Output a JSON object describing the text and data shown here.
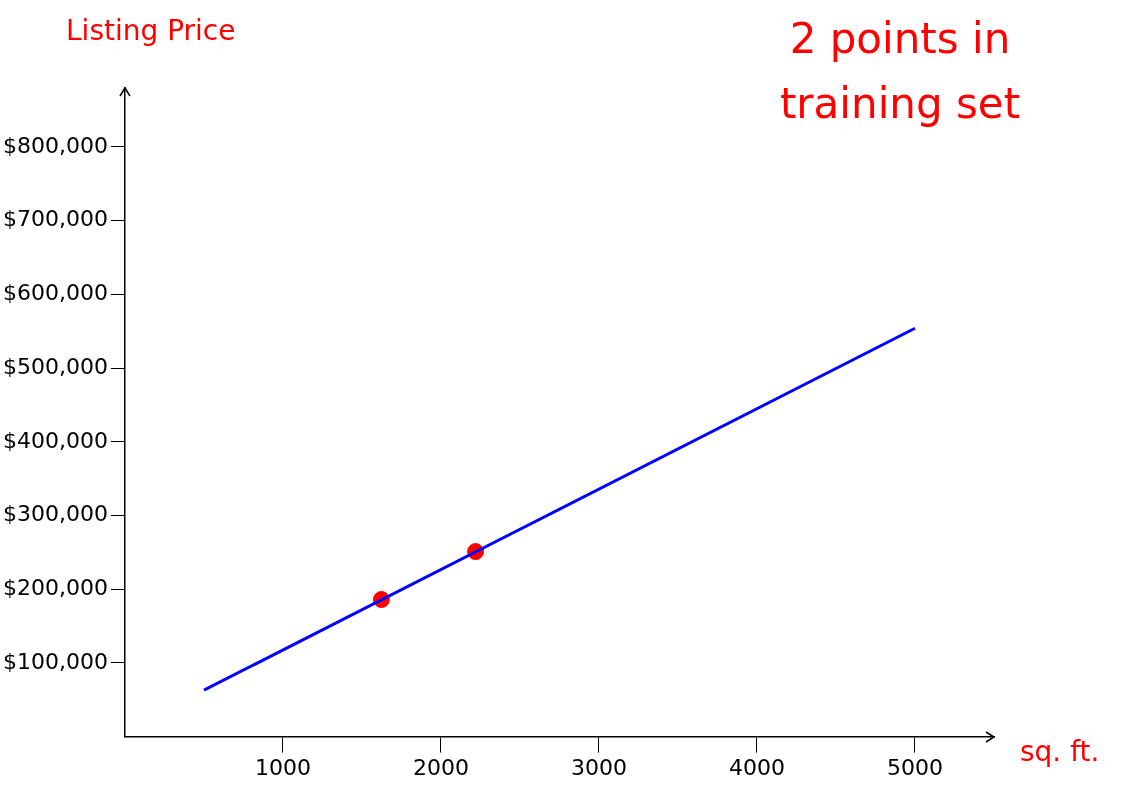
{
  "chart_data": {
    "type": "scatter",
    "xlabel": "sq. ft.",
    "ylabel": "Listing Price",
    "annotations": [
      "2 points in training set"
    ],
    "xlim": [
      0,
      5500
    ],
    "xticks": [
      1000,
      2000,
      3000,
      4000,
      5000
    ],
    "ylim": [
      0,
      880000
    ],
    "yticks": [
      {
        "value": 100000,
        "label": "$100,000"
      },
      {
        "value": 200000,
        "label": "$200,000"
      },
      {
        "value": 300000,
        "label": "$300,000"
      },
      {
        "value": 400000,
        "label": "$400,000"
      },
      {
        "value": 500000,
        "label": "$500,000"
      },
      {
        "value": 600000,
        "label": "$600,000"
      },
      {
        "value": 700000,
        "label": "$700,000"
      },
      {
        "value": 800000,
        "label": "$800,000"
      }
    ],
    "grid": false,
    "legend": false,
    "series": [
      {
        "type": "line",
        "color": "#0000ff",
        "marker": "none",
        "x": [
          500,
          5000
        ],
        "values": [
          63000,
          554000
        ]
      },
      {
        "type": "scatter",
        "color": "#ff0000",
        "marker": "circle",
        "x": [
          1623,
          2219
        ],
        "values": [
          186000,
          251000
        ]
      }
    ]
  }
}
